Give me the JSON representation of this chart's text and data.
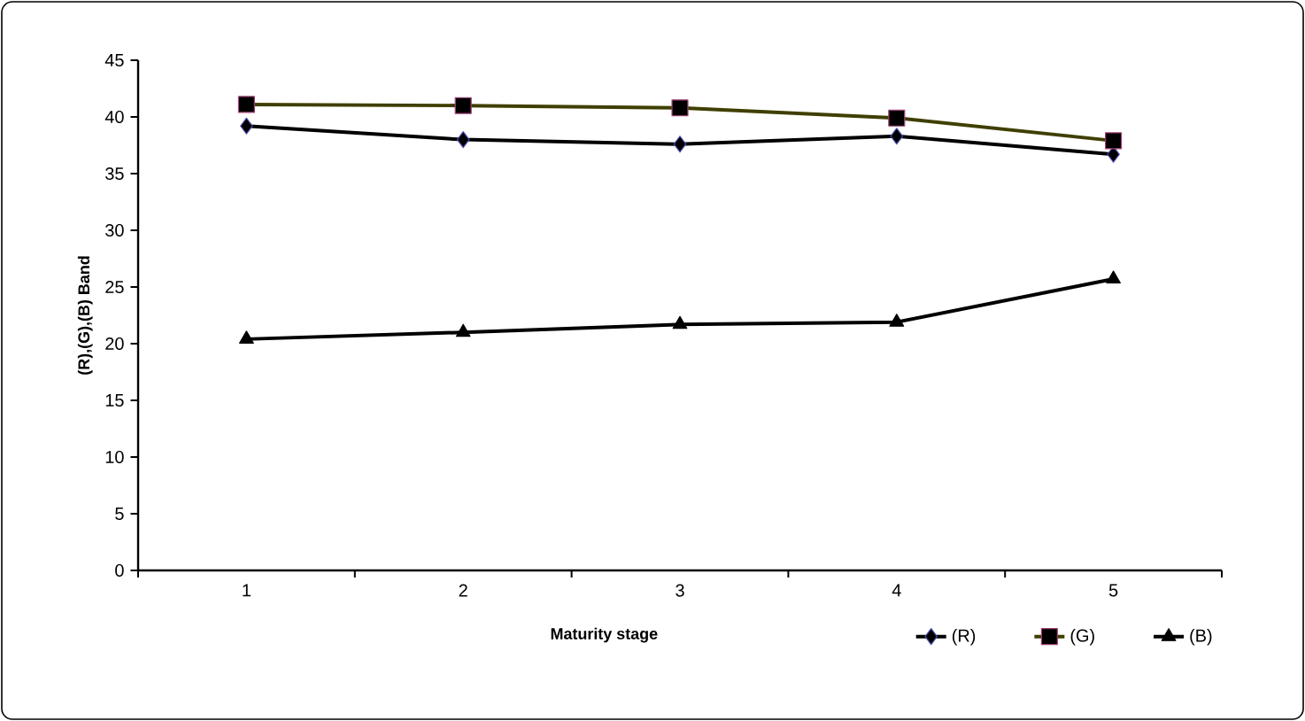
{
  "chart_data": {
    "type": "line",
    "xlabel": "Maturity stage",
    "ylabel": "(R),(G),(B) Band",
    "categories": [
      "1",
      "2",
      "3",
      "4",
      "5"
    ],
    "series": [
      {
        "name": "(R)",
        "color": "#000000",
        "marker": "diamond",
        "values": [
          39.2,
          38.0,
          37.6,
          38.3,
          36.7
        ]
      },
      {
        "name": "(G)",
        "color": "#3f3f00",
        "marker": "square",
        "values": [
          41.1,
          41.0,
          40.8,
          39.9,
          37.9
        ]
      },
      {
        "name": "(B)",
        "color": "#000000",
        "marker": "triangle",
        "values": [
          20.4,
          21.0,
          21.7,
          21.9,
          25.7
        ]
      }
    ],
    "ylim": [
      0,
      45
    ],
    "yticks": [
      0,
      5,
      10,
      15,
      20,
      25,
      30,
      35,
      40,
      45
    ],
    "grid": false,
    "legend": "bottom right"
  }
}
